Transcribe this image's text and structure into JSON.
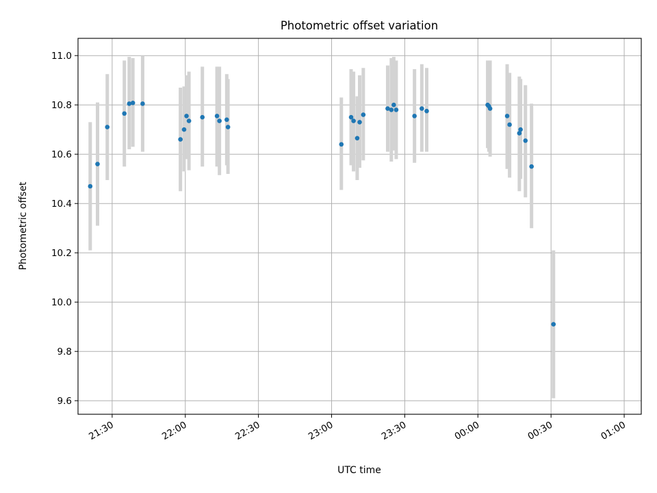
{
  "chart_data": {
    "type": "scatter",
    "title": "Photometric offset variation",
    "xlabel": "UTC time",
    "ylabel": "Photometric offset",
    "x_axis": "time",
    "xlim": [
      "21:16",
      "01:07"
    ],
    "ylim": [
      9.545,
      11.07
    ],
    "x_ticks": [
      "21:30",
      "22:00",
      "22:30",
      "23:00",
      "23:30",
      "00:00",
      "00:30",
      "01:00"
    ],
    "y_ticks": [
      9.6,
      9.8,
      10.0,
      10.2,
      10.4,
      10.6,
      10.8,
      11.0
    ],
    "y_tick_labels": [
      "9.6",
      "9.8",
      "10.0",
      "10.2",
      "10.4",
      "10.6",
      "10.8",
      "11.0"
    ],
    "grid": true,
    "marker_color": "#1f77b4",
    "errorbar_color": "#d3d3d3",
    "series": [
      {
        "points": [
          {
            "time": "21:21",
            "y": 10.47,
            "lo": 10.21,
            "hi": 10.73
          },
          {
            "time": "21:24",
            "y": 10.56,
            "lo": 10.31,
            "hi": 10.81
          },
          {
            "time": "21:28",
            "y": 10.71,
            "lo": 10.495,
            "hi": 10.925
          },
          {
            "time": "21:35",
            "y": 10.765,
            "lo": 10.55,
            "hi": 10.98
          },
          {
            "time": "21:37",
            "y": 10.805,
            "lo": 10.62,
            "hi": 10.995
          },
          {
            "time": "21:38.5",
            "y": 10.808,
            "lo": 10.63,
            "hi": 10.99
          },
          {
            "time": "21:42.5",
            "y": 10.805,
            "lo": 10.61,
            "hi": 11.0
          },
          {
            "time": "21:58",
            "y": 10.66,
            "lo": 10.45,
            "hi": 10.87
          },
          {
            "time": "21:59.5",
            "y": 10.7,
            "lo": 10.53,
            "hi": 10.875
          },
          {
            "time": "22:00.5",
            "y": 10.755,
            "lo": 10.58,
            "hi": 10.92
          },
          {
            "time": "22:01.5",
            "y": 10.735,
            "lo": 10.535,
            "hi": 10.935
          },
          {
            "time": "22:07",
            "y": 10.75,
            "lo": 10.55,
            "hi": 10.955
          },
          {
            "time": "22:13",
            "y": 10.755,
            "lo": 10.55,
            "hi": 10.955
          },
          {
            "time": "22:14",
            "y": 10.735,
            "lo": 10.515,
            "hi": 10.955
          },
          {
            "time": "22:17",
            "y": 10.74,
            "lo": 10.555,
            "hi": 10.925
          },
          {
            "time": "22:17.5",
            "y": 10.71,
            "lo": 10.52,
            "hi": 10.905
          },
          {
            "time": "23:04",
            "y": 10.64,
            "lo": 10.455,
            "hi": 10.83
          },
          {
            "time": "23:08",
            "y": 10.75,
            "lo": 10.555,
            "hi": 10.945
          },
          {
            "time": "23:09",
            "y": 10.735,
            "lo": 10.53,
            "hi": 10.935
          },
          {
            "time": "23:10.5",
            "y": 10.665,
            "lo": 10.495,
            "hi": 10.835
          },
          {
            "time": "23:11.5",
            "y": 10.73,
            "lo": 10.545,
            "hi": 10.92
          },
          {
            "time": "23:13",
            "y": 10.76,
            "lo": 10.575,
            "hi": 10.95
          },
          {
            "time": "23:23",
            "y": 10.785,
            "lo": 10.61,
            "hi": 10.96
          },
          {
            "time": "23:24.5",
            "y": 10.78,
            "lo": 10.57,
            "hi": 10.99
          },
          {
            "time": "23:25.5",
            "y": 10.8,
            "lo": 10.615,
            "hi": 10.995
          },
          {
            "time": "23:26.5",
            "y": 10.78,
            "lo": 10.58,
            "hi": 10.98
          },
          {
            "time": "23:34",
            "y": 10.755,
            "lo": 10.565,
            "hi": 10.945
          },
          {
            "time": "23:37",
            "y": 10.785,
            "lo": 10.61,
            "hi": 10.965
          },
          {
            "time": "23:39",
            "y": 10.775,
            "lo": 10.61,
            "hi": 10.95
          },
          {
            "time": "00:04",
            "y": 10.8,
            "lo": 10.625,
            "hi": 10.98
          },
          {
            "time": "00:04.5",
            "y": 10.795,
            "lo": 10.61,
            "hi": 10.975
          },
          {
            "time": "00:05",
            "y": 10.785,
            "lo": 10.59,
            "hi": 10.98
          },
          {
            "time": "00:12",
            "y": 10.755,
            "lo": 10.54,
            "hi": 10.965
          },
          {
            "time": "00:13",
            "y": 10.72,
            "lo": 10.505,
            "hi": 10.93
          },
          {
            "time": "00:17",
            "y": 10.685,
            "lo": 10.45,
            "hi": 10.915
          },
          {
            "time": "00:17.5",
            "y": 10.7,
            "lo": 10.5,
            "hi": 10.905
          },
          {
            "time": "00:19.5",
            "y": 10.655,
            "lo": 10.425,
            "hi": 10.88
          },
          {
            "time": "00:22",
            "y": 10.55,
            "lo": 10.3,
            "hi": 10.805
          },
          {
            "time": "00:31",
            "y": 9.91,
            "lo": 9.61,
            "hi": 10.21
          }
        ]
      }
    ]
  }
}
